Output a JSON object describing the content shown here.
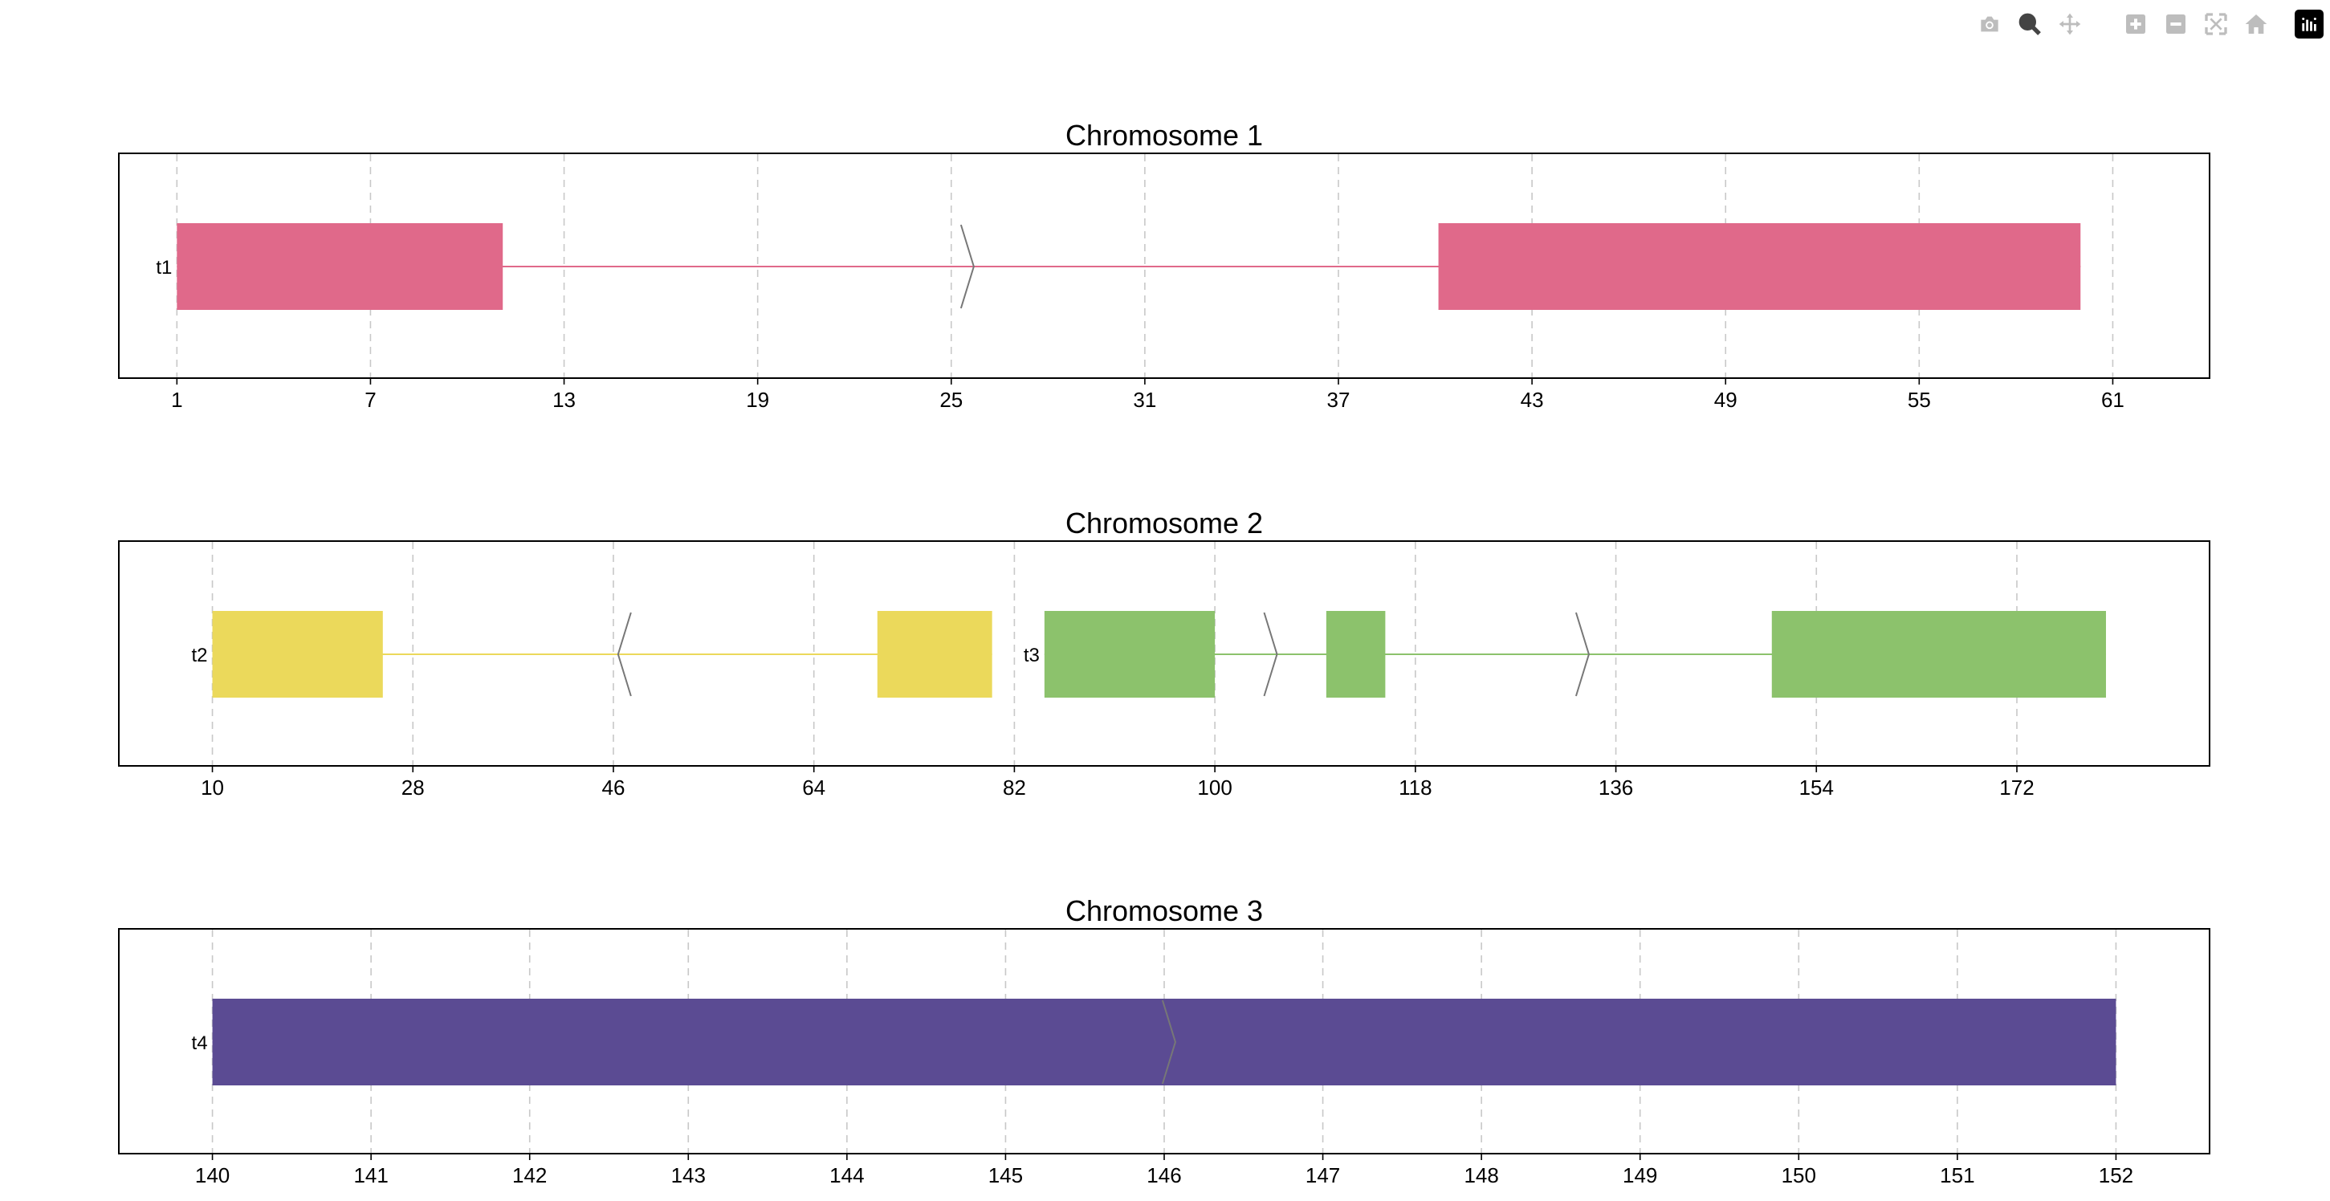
{
  "toolbar": {
    "buttons": [
      {
        "icon": "camera-icon",
        "label": "Download plot as a png"
      },
      {
        "icon": "zoom-icon",
        "label": "Zoom",
        "active": true
      },
      {
        "icon": "pan-icon",
        "label": "Pan"
      },
      {
        "icon": "zoom-in-icon",
        "label": "Zoom in"
      },
      {
        "icon": "zoom-out-icon",
        "label": "Zoom out"
      },
      {
        "icon": "autoscale-icon",
        "label": "Autoscale"
      },
      {
        "icon": "reset-axes-icon",
        "label": "Reset axes"
      }
    ],
    "logo": "plotly-logo-icon"
  },
  "chart_data": [
    {
      "type": "gene-structure",
      "title": "Chromosome 1",
      "xlim": [
        -0.8,
        64.0
      ],
      "x_ticks": [
        1,
        7,
        13,
        19,
        25,
        31,
        37,
        43,
        49,
        55,
        61
      ],
      "grid": "vertical-dashed",
      "transcripts": [
        {
          "name": "t1",
          "color": "#E0698A",
          "strand": "+",
          "start": 1,
          "end": 60,
          "exons": [
            [
              1,
              11.1
            ],
            [
              40.1,
              60
            ]
          ],
          "arrows": [
            25.5
          ]
        }
      ]
    },
    {
      "type": "gene-structure",
      "title": "Chromosome 2",
      "xlim": [
        1.6,
        189.3
      ],
      "x_ticks": [
        10,
        28,
        46,
        64,
        82,
        100,
        118,
        136,
        154,
        172
      ],
      "grid": "vertical-dashed",
      "transcripts": [
        {
          "name": "t2",
          "color": "#EBD95B",
          "strand": "-",
          "start": 10,
          "end": 80,
          "exons": [
            [
              10,
              25.3
            ],
            [
              69.7,
              80
            ]
          ],
          "arrows": [
            47
          ]
        },
        {
          "name": "t3",
          "color": "#8CC26C",
          "strand": "+",
          "start": 84.7,
          "end": 180,
          "exons": [
            [
              84.7,
              100
            ],
            [
              110,
              115.3
            ],
            [
              150,
              180
            ]
          ],
          "arrows": [
            105,
            133
          ]
        }
      ]
    },
    {
      "type": "gene-structure",
      "title": "Chromosome 3",
      "xlim": [
        139.41,
        152.59
      ],
      "x_ticks": [
        140,
        141,
        142,
        143,
        144,
        145,
        146,
        147,
        148,
        149,
        150,
        151,
        152
      ],
      "grid": "vertical-dashed",
      "transcripts": [
        {
          "name": "t4",
          "color": "#5B4B93",
          "strand": "+",
          "start": 140,
          "end": 152,
          "exons": [
            [
              140,
              152
            ]
          ],
          "arrows": [
            146.03
          ]
        }
      ]
    }
  ]
}
